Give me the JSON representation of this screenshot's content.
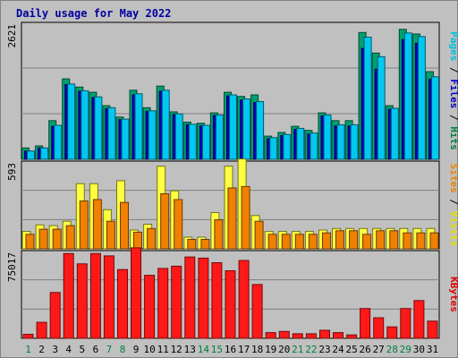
{
  "chart_data": {
    "type": "bar",
    "title": "Daily usage for May 2022",
    "categories": [
      "1",
      "2",
      "3",
      "4",
      "5",
      "6",
      "7",
      "8",
      "9",
      "10",
      "11",
      "12",
      "13",
      "14",
      "15",
      "16",
      "17",
      "18",
      "19",
      "20",
      "21",
      "22",
      "23",
      "24",
      "25",
      "26",
      "27",
      "28",
      "29",
      "30",
      "31"
    ],
    "weekend_days": [
      1,
      7,
      8,
      14,
      15,
      21,
      22,
      28,
      29
    ],
    "panels": [
      {
        "name": "hits-files-pages",
        "ymax_label": "2621",
        "ymax": 2621,
        "right_labels": [
          {
            "text": "Pages",
            "color": "#00c0e0"
          },
          {
            "text": "Files",
            "color": "#0000c0"
          },
          {
            "text": "Hits",
            "color": "#008040"
          }
        ],
        "series": [
          {
            "name": "Hits",
            "color": "#00a070",
            "values": [
              220,
              260,
              750,
              1560,
              1400,
              1300,
              1040,
              820,
              1340,
              1000,
              1420,
              920,
              720,
              700,
              900,
              1300,
              1220,
              1250,
              450,
              520,
              640,
              560,
              900,
              750,
              750,
              2460,
              2060,
              1040,
              2520,
              2430,
              1700
            ]
          },
          {
            "name": "Files",
            "color": "#0000c0",
            "values": [
              160,
              220,
              640,
              1450,
              1320,
              1200,
              980,
              770,
              1250,
              930,
              1320,
              870,
              670,
              650,
              850,
              1230,
              1150,
              1100,
              400,
              460,
              580,
              490,
              840,
              650,
              650,
              2150,
              1750,
              970,
              2320,
              2250,
              1550
            ]
          },
          {
            "name": "Pages",
            "color": "#00c8f0",
            "values": [
              160,
              220,
              660,
              1460,
              1330,
              1210,
              1000,
              780,
              1270,
              940,
              1340,
              880,
              680,
              660,
              860,
              1250,
              1170,
              1120,
              420,
              480,
              600,
              510,
              860,
              670,
              670,
              2370,
              1990,
              990,
              2450,
              2380,
              1600
            ]
          }
        ]
      },
      {
        "name": "visits-sites",
        "ymax_label": "593",
        "ymax": 593,
        "right_labels": [
          {
            "text": "Sites",
            "color": "#f08000"
          },
          {
            "text": "Visits",
            "color": "#e0e000"
          }
        ],
        "series": [
          {
            "name": "Visits",
            "color": "#ffff40",
            "values": [
              120,
              165,
              160,
              190,
              450,
              450,
              270,
              470,
              130,
              170,
              570,
              400,
              80,
              80,
              250,
              570,
              620,
              230,
              120,
              120,
              120,
              120,
              130,
              140,
              140,
              140,
              140,
              140,
              140,
              140,
              140
            ]
          },
          {
            "name": "Sites",
            "color": "#f08000",
            "values": [
              100,
              135,
              135,
              160,
              330,
              340,
              190,
              320,
              115,
              140,
              380,
              340,
              65,
              65,
              200,
              420,
              430,
              190,
              100,
              100,
              100,
              100,
              110,
              125,
              125,
              100,
              125,
              125,
              110,
              110,
              110
            ]
          }
        ]
      },
      {
        "name": "kbytes",
        "ymax_label": "75017",
        "ymax": 75017,
        "right_labels": [
          {
            "text": "KBytes",
            "color": "#e00000"
          }
        ],
        "series": [
          {
            "name": "KBytes",
            "color": "#ff1818",
            "values": [
              3500,
              14000,
              40000,
              74000,
              65000,
              74000,
              72000,
              60000,
              79000,
              55000,
              61000,
              63000,
              71000,
              70000,
              66000,
              59000,
              68000,
              47000,
              5000,
              6000,
              4000,
              4000,
              7000,
              5000,
              3000,
              26000,
              18000,
              10000,
              26000,
              33000,
              15000
            ]
          }
        ]
      }
    ]
  }
}
